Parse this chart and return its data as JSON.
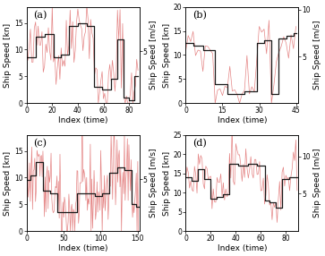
{
  "subplots": [
    {
      "label": "(a)",
      "xlim": [
        0,
        88
      ],
      "ylim_kn": [
        0,
        18
      ],
      "xticks": [
        0,
        20,
        40,
        60,
        80
      ],
      "yticks_kn": [
        0,
        5,
        10,
        15
      ],
      "ytick_ms_labels": [
        "5"
      ],
      "ytick_ms_vals_kn": [
        9.708
      ],
      "xlabel": "Index (time)"
    },
    {
      "label": "(b)",
      "xlim": [
        0,
        46
      ],
      "ylim_kn": [
        0,
        20
      ],
      "xticks": [
        0,
        15,
        30,
        45
      ],
      "yticks_kn": [
        0,
        5,
        10,
        15,
        20
      ],
      "ytick_ms_labels": [
        "5",
        "10"
      ],
      "ytick_ms_vals_kn": [
        9.708,
        19.416
      ],
      "xlabel": "Index (time)"
    },
    {
      "label": "(c)",
      "xlim": [
        0,
        152
      ],
      "ylim_kn": [
        0,
        18
      ],
      "xticks": [
        0,
        50,
        100,
        150
      ],
      "yticks_kn": [
        0,
        5,
        10,
        15
      ],
      "ytick_ms_labels": [
        "5"
      ],
      "ytick_ms_vals_kn": [
        9.708
      ],
      "xlabel": "Index (time)"
    },
    {
      "label": "(d)",
      "xlim": [
        0,
        90
      ],
      "ylim_kn": [
        0,
        25
      ],
      "xticks": [
        0,
        20,
        40,
        60,
        80
      ],
      "yticks_kn": [
        0,
        5,
        10,
        15,
        20,
        25
      ],
      "ytick_ms_labels": [
        "5",
        "10"
      ],
      "ytick_ms_vals_kn": [
        9.708,
        19.416
      ],
      "xlabel": "Index (time)"
    }
  ],
  "ylabel_left": "Ship Speed [kn]",
  "ylabel_right": "Ship Speed [m/s]",
  "red_color": "#e07070",
  "black_color": "#1a1a1a",
  "bg_color": "#ffffff",
  "label_fontsize": 6.5,
  "tick_fontsize": 5.5,
  "panel_label_fontsize": 8
}
